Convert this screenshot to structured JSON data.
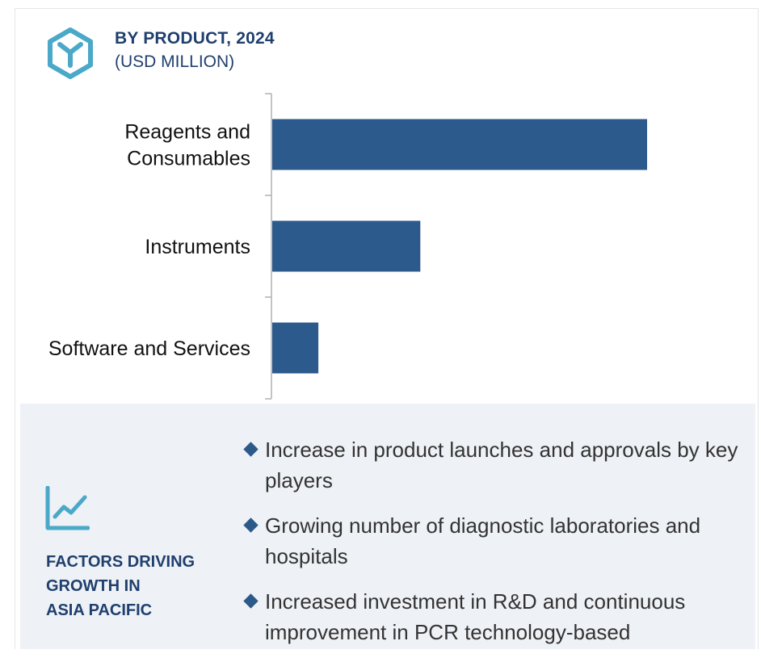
{
  "header": {
    "title": "BY PRODUCT, 2024",
    "subtitle": "(USD MILLION)",
    "icon": "hexagon-y-logo-icon",
    "icon_color": "#4aa8c8"
  },
  "chart_data": {
    "type": "bar",
    "orientation": "horizontal",
    "categories": [
      "Reagents and Consumables",
      "Instruments",
      "Software and Services"
    ],
    "category_lines": [
      [
        "Reagents and",
        "Consumables"
      ],
      [
        "Instruments"
      ],
      [
        "Software and Services"
      ]
    ],
    "values": [
      100,
      39.5,
      12.3
    ],
    "title": "BY PRODUCT, 2024",
    "subtitle": "(USD MILLION)",
    "xlabel": "",
    "ylabel": "",
    "xlim": [
      0,
      100
    ],
    "grid": false,
    "legend": "none",
    "bar_color": "#2d5a8c"
  },
  "factors": {
    "icon": "line-chart-icon",
    "icon_color": "#4aa8c8",
    "heading_lines": [
      "FACTORS DRIVING",
      "GROWTH IN",
      "ASIA PACIFIC"
    ],
    "items": [
      {
        "text": "Increase in product launches and approvals by key players"
      },
      {
        "text": "Growing number of diagnostic laboratories and hospitals"
      },
      {
        "text": "Increased investment in R&D and continuous improvement in PCR technology-based"
      }
    ],
    "bullet_color": "#2b5a8a",
    "panel_color": "#eef1f5"
  }
}
